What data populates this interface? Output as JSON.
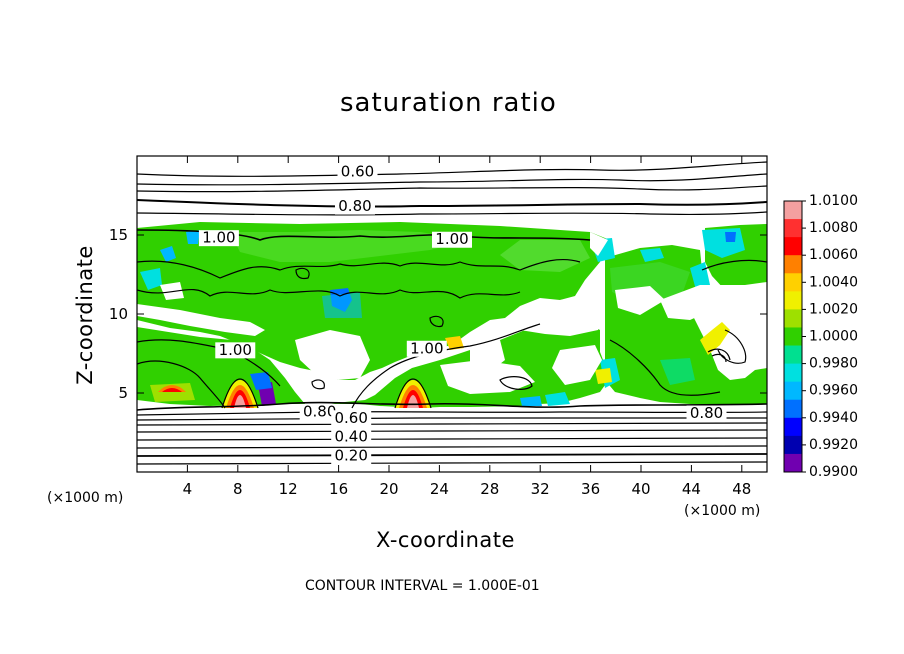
{
  "chart_data": {
    "type": "heatmap",
    "title": "saturation ratio",
    "xlabel": "X-coordinate",
    "ylabel": "Z-coordinate",
    "x_unit": "(×1000 m)",
    "z_unit": "(×1000 m)",
    "xlim": [
      0,
      50
    ],
    "ylim": [
      0,
      20
    ],
    "x_ticks": [
      4,
      8,
      12,
      16,
      20,
      24,
      28,
      32,
      36,
      40,
      44,
      48
    ],
    "y_ticks": [
      5,
      10,
      15
    ],
    "contour_labels": [
      {
        "text": "0.60",
        "x": 17.5,
        "z": 19.0
      },
      {
        "text": "0.80",
        "x": 17.3,
        "z": 16.8
      },
      {
        "text": "1.00",
        "x": 6.5,
        "z": 14.8
      },
      {
        "text": "1.00",
        "x": 25.0,
        "z": 14.7
      },
      {
        "text": "1.00",
        "x": 7.8,
        "z": 7.7
      },
      {
        "text": "1.00",
        "x": 23.0,
        "z": 7.8
      },
      {
        "text": "0.80",
        "x": 14.5,
        "z": 3.8
      },
      {
        "text": "0.60",
        "x": 17.0,
        "z": 3.4
      },
      {
        "text": "0.40",
        "x": 17.0,
        "z": 2.2
      },
      {
        "text": "0.20",
        "x": 17.0,
        "z": 1.0
      },
      {
        "text": "0.80",
        "x": 45.2,
        "z": 3.7
      }
    ],
    "colorbar": {
      "ticks": [
        "1.0100",
        "1.0080",
        "1.0060",
        "1.0040",
        "1.0020",
        "1.0000",
        "0.9980",
        "0.9960",
        "0.9940",
        "0.9920",
        "0.9900"
      ],
      "colors": [
        "#f4a0a0",
        "#ff3030",
        "#ff0000",
        "#ff8000",
        "#ffd000",
        "#f0f000",
        "#9ee000",
        "#30d000",
        "#00e090",
        "#00e0e0",
        "#00b8ff",
        "#0070ff",
        "#0000ff",
        "#0000b0",
        "#7000b0"
      ]
    },
    "footer": "CONTOUR INTERVAL = 1.000E-01"
  }
}
